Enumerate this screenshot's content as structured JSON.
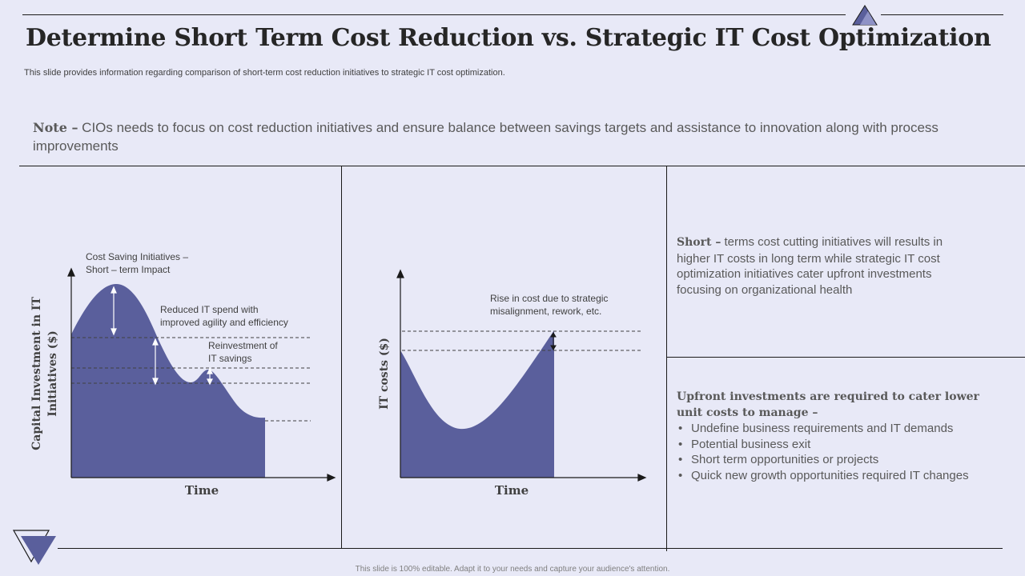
{
  "header": {
    "title": "Determine Short Term Cost Reduction vs. Strategic IT Cost Optimization",
    "subtitle": "This slide provides information regarding comparison of  short-term cost reduction initiatives to strategic IT cost optimization."
  },
  "note": {
    "label": "Note –",
    "text": " CIOs needs to focus on cost reduction initiatives and ensure balance between savings targets and assistance to innovation along with process improvements"
  },
  "left_diagram": {
    "y_axis_label_1": "Capital Investment in IT",
    "y_axis_label_2": "Initiatives ($)",
    "x_axis_label": "Time",
    "annotation_1_line1": "Cost Saving Initiatives –",
    "annotation_1_line2": "Short – term Impact",
    "annotation_2_line1": "Reduced IT spend with",
    "annotation_2_line2": "improved agility and efficiency",
    "annotation_3_line1": "Reinvestment  of",
    "annotation_3_line2": "IT savings"
  },
  "middle_diagram": {
    "y_axis_label": "IT costs ($)",
    "x_axis_label": "Time",
    "annotation_line1": "Rise in cost due to strategic",
    "annotation_line2": "misalignment, rework, etc."
  },
  "right_top": {
    "lead": "Short –",
    "text": " terms cost cutting initiatives will results in higher IT costs in long term while strategic IT cost optimization initiatives cater upfront investments focusing on organizational health"
  },
  "right_bottom": {
    "lead": "Upfront investments are required to cater lower unit costs to manage –",
    "bullets": [
      "Undefine business requirements and IT demands",
      "Potential business exit",
      "Short term opportunities or projects",
      "Quick new growth opportunities required IT changes"
    ]
  },
  "footer": {
    "text": "This slide is 100% editable. Adapt it to your needs and capture your audience's attention."
  },
  "colors": {
    "background": "#e8e9f7",
    "accent": "#5a5f9c",
    "text": "#404040"
  },
  "icons": {
    "top_right": "triangle-logo-icon",
    "bottom_left": "inverted-triangle-logo-icon"
  }
}
